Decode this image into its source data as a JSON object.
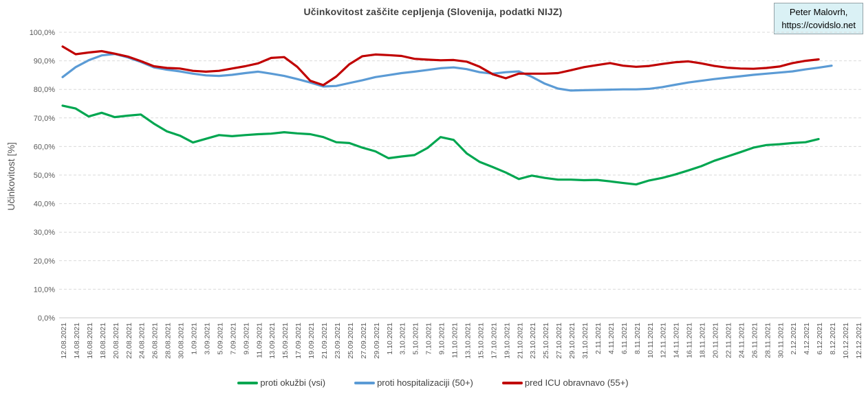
{
  "header": {
    "title": "Učinkovitost zaščite cepljenja (Slovenija, podatki NIJZ)"
  },
  "credit": {
    "line1": "Peter Malovrh,",
    "line2": "https://covidslo.net"
  },
  "y_axis": {
    "title": "Učinkovitost [%]"
  },
  "colors": {
    "green": "#00A650",
    "blue": "#5B9BD5",
    "red": "#C00000",
    "grid": "#D9D9D9",
    "axis_line": "#C9C9C9",
    "tick_text": "#595959",
    "title_text": "#3F3F3F",
    "credit_bg": "#DAF1F5",
    "credit_border": "#94A3A8"
  },
  "chart_data": {
    "type": "line",
    "title": "Učinkovitost zaščite cepljenja (Slovenija, podatki NIJZ)",
    "xlabel": "",
    "ylabel": "Učinkovitost [%]",
    "ylim": [
      0,
      100
    ],
    "ytick_step": 10,
    "ytick_format": "comma-decimal-percent",
    "grid": "horizontal-dashed",
    "legend_position": "bottom-center",
    "categories": [
      "12.08.2021",
      "14.08.2021",
      "16.08.2021",
      "18.08.2021",
      "20.08.2021",
      "22.08.2021",
      "24.08.2021",
      "26.08.2021",
      "28.08.2021",
      "30.08.2021",
      "1.09.2021",
      "3.09.2021",
      "5.09.2021",
      "7.09.2021",
      "9.09.2021",
      "11.09.2021",
      "13.09.2021",
      "15.09.2021",
      "17.09.2021",
      "19.09.2021",
      "21.09.2021",
      "23.09.2021",
      "25.09.2021",
      "27.09.2021",
      "29.09.2021",
      "1.10.2021",
      "3.10.2021",
      "5.10.2021",
      "7.10.2021",
      "9.10.2021",
      "11.10.2021",
      "13.10.2021",
      "15.10.2021",
      "17.10.2021",
      "19.10.2021",
      "21.10.2021",
      "23.10.2021",
      "25.10.2021",
      "27.10.2021",
      "29.10.2021",
      "31.10.2021",
      "2.11.2021",
      "4.11.2021",
      "6.11.2021",
      "8.11.2021",
      "10.11.2021",
      "12.11.2021",
      "14.11.2021",
      "16.11.2021",
      "18.11.2021",
      "20.11.2021",
      "22.11.2021",
      "24.11.2021",
      "26.11.2021",
      "28.11.2021",
      "30.11.2021",
      "2.12.2021",
      "4.12.2021",
      "6.12.2021",
      "8.12.2021",
      "10.12.2021",
      "12.12.2021"
    ],
    "series": [
      {
        "name": "proti okužbi (vsi)",
        "color": "#00A650",
        "values": [
          74.3,
          73.3,
          70.5,
          71.8,
          70.3,
          70.8,
          71.2,
          68.0,
          65.3,
          63.8,
          61.4,
          62.7,
          64.0,
          63.6,
          64.0,
          64.3,
          64.5,
          65.0,
          64.6,
          64.3,
          63.3,
          61.5,
          61.2,
          59.6,
          58.3,
          55.9,
          56.5,
          57.0,
          59.5,
          63.3,
          62.3,
          57.6,
          54.6,
          52.8,
          50.9,
          48.6,
          49.8,
          49.0,
          48.4,
          48.4,
          48.2,
          48.3,
          47.8,
          47.2,
          46.7,
          48.1,
          49.0,
          50.2,
          51.6,
          53.1,
          55.0,
          56.5,
          58.0,
          59.6,
          60.5,
          60.8,
          61.2,
          61.5,
          62.6,
          null,
          null,
          null
        ]
      },
      {
        "name": "proti hospitalizaciji (50+)",
        "color": "#5B9BD5",
        "values": [
          84.3,
          87.8,
          90.2,
          91.9,
          92.4,
          91.2,
          89.6,
          87.7,
          86.9,
          86.3,
          85.5,
          84.9,
          84.7,
          85.1,
          85.7,
          86.2,
          85.5,
          84.7,
          83.6,
          82.4,
          81.0,
          81.2,
          82.2,
          83.2,
          84.3,
          85.0,
          85.7,
          86.2,
          86.8,
          87.4,
          87.7,
          87.1,
          86.0,
          85.5,
          86.0,
          86.3,
          84.4,
          82.0,
          80.3,
          79.6,
          79.7,
          79.8,
          79.9,
          80.0,
          80.0,
          80.2,
          80.8,
          81.6,
          82.4,
          83.0,
          83.6,
          84.1,
          84.6,
          85.1,
          85.5,
          85.9,
          86.3,
          87.0,
          87.6,
          88.3,
          null,
          null
        ]
      },
      {
        "name": "pred ICU obravnavo (55+)",
        "color": "#C00000",
        "values": [
          95.0,
          92.3,
          92.9,
          93.4,
          92.5,
          91.5,
          89.9,
          88.1,
          87.5,
          87.3,
          86.5,
          86.2,
          86.5,
          87.3,
          88.1,
          89.1,
          91.0,
          91.3,
          87.9,
          83.0,
          81.5,
          84.5,
          88.8,
          91.6,
          92.2,
          92.0,
          91.7,
          90.7,
          90.4,
          90.2,
          90.3,
          89.7,
          87.9,
          85.3,
          83.9,
          85.5,
          85.5,
          85.5,
          85.7,
          86.7,
          87.8,
          88.5,
          89.2,
          88.3,
          87.9,
          88.2,
          88.9,
          89.5,
          89.8,
          89.1,
          88.2,
          87.6,
          87.3,
          87.2,
          87.5,
          88.0,
          89.2,
          90.0,
          90.5,
          null,
          null,
          null
        ]
      }
    ]
  }
}
